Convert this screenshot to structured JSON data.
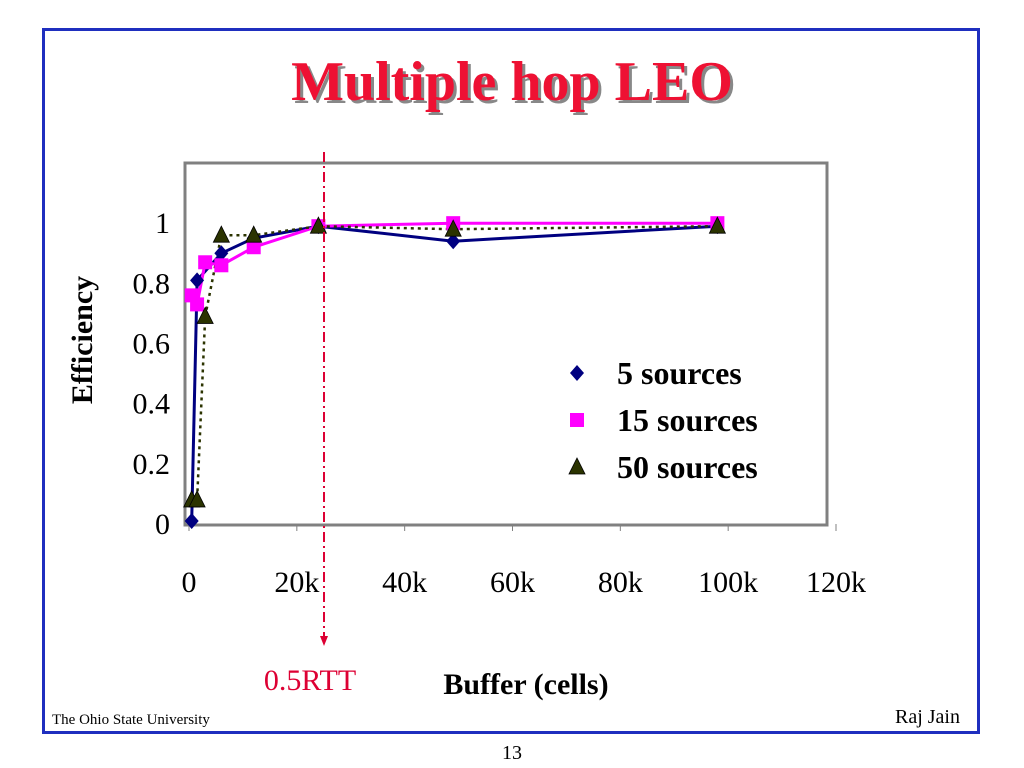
{
  "slide": {
    "title": "Multiple hop LEO",
    "footer_left": "The Ohio State University",
    "footer_right": "Raj Jain",
    "page_number": "13"
  },
  "colors": {
    "frame": "#1f2fbf",
    "title": "#ee1133",
    "series_5": "#000080",
    "series_15": "#ff00ff",
    "series_50": "#2b3300",
    "marker_line": "#dd0033"
  },
  "chart_data": {
    "type": "line",
    "title": "",
    "xlabel": "Buffer (cells)",
    "ylabel": "Efficiency",
    "xlim": [
      0,
      120000
    ],
    "ylim": [
      0,
      1.2
    ],
    "x_ticks": [
      {
        "value": 0,
        "label": "0"
      },
      {
        "value": 20000,
        "label": "20k"
      },
      {
        "value": 40000,
        "label": "40k"
      },
      {
        "value": 60000,
        "label": "60k"
      },
      {
        "value": 80000,
        "label": "80k"
      },
      {
        "value": 100000,
        "label": "100k"
      },
      {
        "value": 120000,
        "label": "120k"
      }
    ],
    "y_ticks": [
      {
        "value": 0,
        "label": "0"
      },
      {
        "value": 0.2,
        "label": "0.2"
      },
      {
        "value": 0.4,
        "label": "0.4"
      },
      {
        "value": 0.6,
        "label": "0.6"
      },
      {
        "value": 0.8,
        "label": "0.8"
      },
      {
        "value": 1,
        "label": "1"
      }
    ],
    "grid": false,
    "legend_position": "right",
    "series": [
      {
        "name": "5 sources",
        "marker": "diamond",
        "line": "solid",
        "x": [
          500,
          1500,
          6000,
          12000,
          24000,
          49000,
          98000
        ],
        "y": [
          0.01,
          0.81,
          0.9,
          0.95,
          0.99,
          0.94,
          0.99
        ]
      },
      {
        "name": "15 sources",
        "marker": "square",
        "line": "solid",
        "x": [
          500,
          1500,
          3000,
          6000,
          12000,
          24000,
          49000,
          98000
        ],
        "y": [
          0.76,
          0.73,
          0.87,
          0.86,
          0.92,
          0.99,
          1.0,
          1.0
        ]
      },
      {
        "name": "50 sources",
        "marker": "triangle",
        "line": "dotted",
        "x": [
          500,
          1500,
          3000,
          6000,
          12000,
          24000,
          49000,
          98000
        ],
        "y": [
          0.08,
          0.08,
          0.69,
          0.96,
          0.96,
          0.99,
          0.98,
          0.99
        ]
      }
    ],
    "annotation": {
      "x": 25000,
      "label": "0.5RTT"
    }
  }
}
